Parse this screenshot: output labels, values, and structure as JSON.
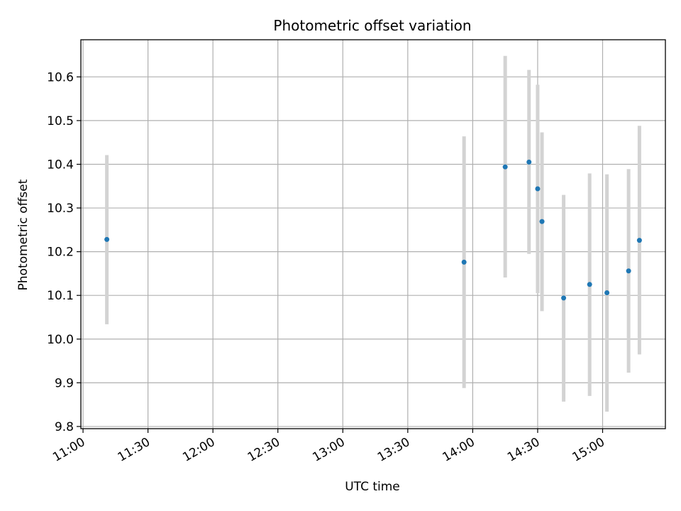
{
  "chart_data": {
    "type": "scatter",
    "title": "Photometric offset variation",
    "xlabel": "UTC time",
    "ylabel": "Photometric offset",
    "xlim": [
      "10:59",
      "15:29"
    ],
    "ylim": [
      9.795,
      10.685
    ],
    "grid": true,
    "x_ticks": [
      "11:00",
      "11:30",
      "12:00",
      "12:30",
      "13:00",
      "13:30",
      "14:00",
      "14:30",
      "15:00"
    ],
    "y_ticks": [
      "9.8",
      "9.9",
      "10.0",
      "10.1",
      "10.2",
      "10.3",
      "10.4",
      "10.5",
      "10.6"
    ],
    "point_color": "#1f77b4",
    "errorbar_color": "#d3d3d3",
    "points": [
      {
        "x": "11:11",
        "y": 10.228,
        "yerr_low": 10.034,
        "yerr_high": 10.421
      },
      {
        "x": "13:56",
        "y": 10.176,
        "yerr_low": 9.888,
        "yerr_high": 10.464
      },
      {
        "x": "14:15",
        "y": 10.394,
        "yerr_low": 10.141,
        "yerr_high": 10.648
      },
      {
        "x": "14:26",
        "y": 10.405,
        "yerr_low": 10.195,
        "yerr_high": 10.616
      },
      {
        "x": "14:30",
        "y": 10.344,
        "yerr_low": 10.105,
        "yerr_high": 10.582
      },
      {
        "x": "14:32",
        "y": 10.269,
        "yerr_low": 10.064,
        "yerr_high": 10.473
      },
      {
        "x": "14:42",
        "y": 10.094,
        "yerr_low": 9.857,
        "yerr_high": 10.33
      },
      {
        "x": "14:54",
        "y": 10.125,
        "yerr_low": 9.87,
        "yerr_high": 10.379
      },
      {
        "x": "15:02",
        "y": 10.106,
        "yerr_low": 9.834,
        "yerr_high": 10.377
      },
      {
        "x": "15:12",
        "y": 10.156,
        "yerr_low": 9.923,
        "yerr_high": 10.389
      },
      {
        "x": "15:17",
        "y": 10.226,
        "yerr_low": 9.965,
        "yerr_high": 10.488
      }
    ]
  }
}
